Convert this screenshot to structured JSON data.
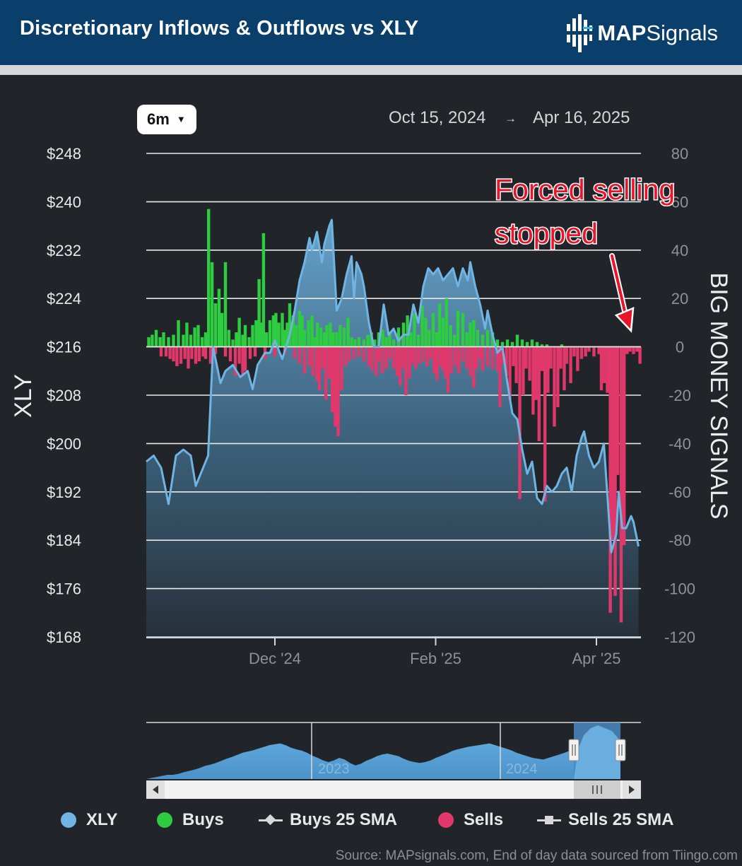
{
  "header": {
    "title": "Discretionary Inflows & Outflows vs XLY",
    "logo_text_bold": "MAP",
    "logo_text": "Signals"
  },
  "controls": {
    "range_label": "6m",
    "start_date": "Oct 15, 2024",
    "arrow": "→",
    "end_date": "Apr 16, 2025"
  },
  "annotation": {
    "line1": "Forced selling",
    "line2": "stopped"
  },
  "navigator": {
    "year_labels": [
      "2023",
      "2024"
    ]
  },
  "legend": {
    "xly": "XLY",
    "buys": "Buys",
    "buys_sma": "Buys 25 SMA",
    "sells": "Sells",
    "sells_sma": "Sells 25 SMA"
  },
  "source": "Source: MAPsignals.com, End of day data sourced from Tiingo.com",
  "colors": {
    "xly": "#6fb4e3",
    "buys": "#2ecc40",
    "sells": "#e0386b",
    "header": "#0b3f6b",
    "annotation": "#e8142a"
  },
  "chart_data": {
    "type": "bar+area",
    "title": "Discretionary Inflows & Outflows vs XLY",
    "left_axis": {
      "label": "XLY",
      "ticks": [
        "$248",
        "$240",
        "$232",
        "$224",
        "$216",
        "$208",
        "$200",
        "$192",
        "$184",
        "$176",
        "$168"
      ],
      "range": [
        168,
        248
      ]
    },
    "right_axis": {
      "label": "BIG MONEY SIGNALS",
      "ticks": [
        "80",
        "60",
        "40",
        "20",
        "0",
        "-20",
        "-40",
        "-60",
        "-80",
        "-100",
        "-120"
      ],
      "range": [
        -120,
        80
      ]
    },
    "x_ticks": [
      "Dec '24",
      "Feb '25",
      "Apr '25"
    ],
    "x_tick_positions": [
      0.26,
      0.585,
      0.91
    ],
    "grid": true,
    "xly": [
      [
        0.0,
        197
      ],
      [
        0.015,
        198
      ],
      [
        0.03,
        196
      ],
      [
        0.045,
        190
      ],
      [
        0.06,
        198
      ],
      [
        0.075,
        199
      ],
      [
        0.09,
        198
      ],
      [
        0.1,
        193
      ],
      [
        0.115,
        196
      ],
      [
        0.125,
        198
      ],
      [
        0.135,
        216
      ],
      [
        0.15,
        210
      ],
      [
        0.16,
        212
      ],
      [
        0.175,
        213
      ],
      [
        0.19,
        211
      ],
      [
        0.205,
        212
      ],
      [
        0.215,
        209
      ],
      [
        0.225,
        213
      ],
      [
        0.24,
        215
      ],
      [
        0.25,
        215
      ],
      [
        0.26,
        217
      ],
      [
        0.275,
        214
      ],
      [
        0.29,
        218
      ],
      [
        0.3,
        222
      ],
      [
        0.31,
        227
      ],
      [
        0.32,
        230
      ],
      [
        0.33,
        234
      ],
      [
        0.335,
        232
      ],
      [
        0.345,
        235
      ],
      [
        0.355,
        230
      ],
      [
        0.36,
        233
      ],
      [
        0.37,
        236
      ],
      [
        0.375,
        237
      ],
      [
        0.385,
        222
      ],
      [
        0.395,
        224
      ],
      [
        0.405,
        228
      ],
      [
        0.415,
        231
      ],
      [
        0.42,
        224
      ],
      [
        0.425,
        230
      ],
      [
        0.435,
        228
      ],
      [
        0.44,
        226
      ],
      [
        0.45,
        220
      ],
      [
        0.46,
        216
      ],
      [
        0.47,
        216
      ],
      [
        0.48,
        223
      ],
      [
        0.49,
        218
      ],
      [
        0.5,
        219
      ],
      [
        0.51,
        217
      ],
      [
        0.52,
        218
      ],
      [
        0.53,
        218
      ],
      [
        0.54,
        223
      ],
      [
        0.55,
        220
      ],
      [
        0.56,
        226
      ],
      [
        0.57,
        229
      ],
      [
        0.58,
        228
      ],
      [
        0.59,
        229
      ],
      [
        0.6,
        227
      ],
      [
        0.61,
        228
      ],
      [
        0.62,
        229
      ],
      [
        0.63,
        226
      ],
      [
        0.64,
        229
      ],
      [
        0.65,
        227
      ],
      [
        0.655,
        230
      ],
      [
        0.665,
        226
      ],
      [
        0.675,
        223
      ],
      [
        0.685,
        219
      ],
      [
        0.69,
        222
      ],
      [
        0.7,
        218
      ],
      [
        0.71,
        215
      ],
      [
        0.72,
        216
      ],
      [
        0.73,
        210
      ],
      [
        0.74,
        205
      ],
      [
        0.75,
        204
      ],
      [
        0.76,
        199
      ],
      [
        0.77,
        195
      ],
      [
        0.78,
        197
      ],
      [
        0.79,
        191
      ],
      [
        0.8,
        190
      ],
      [
        0.81,
        193
      ],
      [
        0.82,
        192
      ],
      [
        0.83,
        193
      ],
      [
        0.84,
        195
      ],
      [
        0.85,
        196
      ],
      [
        0.86,
        192
      ],
      [
        0.87,
        198
      ],
      [
        0.88,
        201
      ],
      [
        0.885,
        202
      ],
      [
        0.895,
        198
      ],
      [
        0.905,
        196
      ],
      [
        0.915,
        197
      ],
      [
        0.925,
        200
      ],
      [
        0.93,
        194
      ],
      [
        0.935,
        188
      ],
      [
        0.94,
        182
      ],
      [
        0.95,
        185
      ],
      [
        0.955,
        192
      ],
      [
        0.962,
        186
      ],
      [
        0.97,
        186
      ],
      [
        0.98,
        188
      ],
      [
        0.985,
        187
      ],
      [
        0.995,
        183
      ]
    ],
    "buys": [
      [
        0.005,
        4
      ],
      [
        0.012,
        5
      ],
      [
        0.02,
        7
      ],
      [
        0.028,
        4
      ],
      [
        0.035,
        6
      ],
      [
        0.045,
        4
      ],
      [
        0.055,
        5
      ],
      [
        0.065,
        11
      ],
      [
        0.075,
        5
      ],
      [
        0.082,
        10
      ],
      [
        0.09,
        5
      ],
      [
        0.098,
        8
      ],
      [
        0.105,
        9
      ],
      [
        0.113,
        4
      ],
      [
        0.12,
        6
      ],
      [
        0.126,
        57
      ],
      [
        0.133,
        35
      ],
      [
        0.14,
        18
      ],
      [
        0.147,
        24
      ],
      [
        0.153,
        14
      ],
      [
        0.16,
        35
      ],
      [
        0.167,
        7
      ],
      [
        0.175,
        3
      ],
      [
        0.182,
        6
      ],
      [
        0.188,
        12
      ],
      [
        0.195,
        5
      ],
      [
        0.2,
        9
      ],
      [
        0.208,
        4
      ],
      [
        0.215,
        9
      ],
      [
        0.222,
        11
      ],
      [
        0.228,
        28
      ],
      [
        0.233,
        10
      ],
      [
        0.237,
        47
      ],
      [
        0.243,
        6
      ],
      [
        0.25,
        11
      ],
      [
        0.257,
        13
      ],
      [
        0.262,
        14
      ],
      [
        0.268,
        10
      ],
      [
        0.275,
        14
      ],
      [
        0.28,
        7
      ],
      [
        0.285,
        10
      ],
      [
        0.29,
        18
      ],
      [
        0.297,
        13
      ],
      [
        0.303,
        9
      ],
      [
        0.31,
        15
      ],
      [
        0.315,
        13
      ],
      [
        0.32,
        7
      ],
      [
        0.328,
        11
      ],
      [
        0.335,
        13
      ],
      [
        0.34,
        4
      ],
      [
        0.346,
        10
      ],
      [
        0.353,
        8
      ],
      [
        0.36,
        6
      ],
      [
        0.365,
        9
      ],
      [
        0.372,
        10
      ],
      [
        0.378,
        6
      ],
      [
        0.385,
        6
      ],
      [
        0.392,
        9
      ],
      [
        0.4,
        8
      ],
      [
        0.408,
        12
      ],
      [
        0.415,
        4
      ],
      [
        0.422,
        3
      ],
      [
        0.43,
        4
      ],
      [
        0.44,
        3
      ],
      [
        0.448,
        5
      ],
      [
        0.455,
        6
      ],
      [
        0.462,
        3
      ],
      [
        0.47,
        6
      ],
      [
        0.478,
        7
      ],
      [
        0.485,
        4
      ],
      [
        0.492,
        6
      ],
      [
        0.5,
        3
      ],
      [
        0.51,
        8
      ],
      [
        0.52,
        10
      ],
      [
        0.528,
        13
      ],
      [
        0.535,
        6
      ],
      [
        0.542,
        14
      ],
      [
        0.55,
        5
      ],
      [
        0.558,
        17
      ],
      [
        0.565,
        12
      ],
      [
        0.572,
        7
      ],
      [
        0.58,
        14
      ],
      [
        0.587,
        6
      ],
      [
        0.593,
        18
      ],
      [
        0.6,
        12
      ],
      [
        0.607,
        20
      ],
      [
        0.615,
        9
      ],
      [
        0.623,
        5
      ],
      [
        0.63,
        15
      ],
      [
        0.64,
        14
      ],
      [
        0.648,
        6
      ],
      [
        0.655,
        10
      ],
      [
        0.662,
        11
      ],
      [
        0.67,
        7
      ],
      [
        0.68,
        5
      ],
      [
        0.69,
        7
      ],
      [
        0.7,
        6
      ],
      [
        0.71,
        3
      ],
      [
        0.72,
        2
      ],
      [
        0.73,
        3
      ],
      [
        0.74,
        2
      ],
      [
        0.75,
        5
      ],
      [
        0.76,
        3
      ],
      [
        0.77,
        2
      ],
      [
        0.78,
        3
      ],
      [
        0.79,
        2
      ],
      [
        0.8,
        1
      ],
      [
        0.81,
        1
      ],
      [
        0.84,
        1
      ]
    ],
    "sells": [
      [
        0.03,
        -4
      ],
      [
        0.04,
        -4
      ],
      [
        0.048,
        -5
      ],
      [
        0.055,
        -6
      ],
      [
        0.062,
        -8
      ],
      [
        0.07,
        -7
      ],
      [
        0.078,
        -5
      ],
      [
        0.085,
        -9
      ],
      [
        0.092,
        -5
      ],
      [
        0.1,
        -7
      ],
      [
        0.107,
        -6
      ],
      [
        0.115,
        -4
      ],
      [
        0.12,
        -5
      ],
      [
        0.13,
        -7
      ],
      [
        0.14,
        -3
      ],
      [
        0.16,
        -4
      ],
      [
        0.17,
        -6
      ],
      [
        0.18,
        -12
      ],
      [
        0.188,
        -7
      ],
      [
        0.195,
        -12
      ],
      [
        0.2,
        -10
      ],
      [
        0.21,
        -5
      ],
      [
        0.22,
        -4
      ],
      [
        0.24,
        -5
      ],
      [
        0.26,
        -4
      ],
      [
        0.28,
        -3
      ],
      [
        0.3,
        -5
      ],
      [
        0.31,
        -7
      ],
      [
        0.32,
        -11
      ],
      [
        0.33,
        -8
      ],
      [
        0.337,
        -12
      ],
      [
        0.345,
        -14
      ],
      [
        0.35,
        -18
      ],
      [
        0.357,
        -9
      ],
      [
        0.363,
        -22
      ],
      [
        0.37,
        -13
      ],
      [
        0.376,
        -27
      ],
      [
        0.382,
        -33
      ],
      [
        0.388,
        -37
      ],
      [
        0.395,
        -18
      ],
      [
        0.403,
        -8
      ],
      [
        0.41,
        -6
      ],
      [
        0.42,
        -5
      ],
      [
        0.43,
        -4
      ],
      [
        0.44,
        -6
      ],
      [
        0.45,
        -8
      ],
      [
        0.457,
        -10
      ],
      [
        0.465,
        -12
      ],
      [
        0.47,
        -6
      ],
      [
        0.477,
        -11
      ],
      [
        0.485,
        -9
      ],
      [
        0.492,
        -5
      ],
      [
        0.5,
        -9
      ],
      [
        0.507,
        -12
      ],
      [
        0.513,
        -16
      ],
      [
        0.52,
        -9
      ],
      [
        0.525,
        -20
      ],
      [
        0.532,
        -13
      ],
      [
        0.538,
        -7
      ],
      [
        0.545,
        -9
      ],
      [
        0.552,
        -7
      ],
      [
        0.56,
        -6
      ],
      [
        0.568,
        -8
      ],
      [
        0.575,
        -5
      ],
      [
        0.582,
        -11
      ],
      [
        0.588,
        -14
      ],
      [
        0.595,
        -8
      ],
      [
        0.6,
        -10
      ],
      [
        0.605,
        -13
      ],
      [
        0.61,
        -19
      ],
      [
        0.617,
        -11
      ],
      [
        0.625,
        -8
      ],
      [
        0.632,
        -11
      ],
      [
        0.64,
        -6
      ],
      [
        0.648,
        -9
      ],
      [
        0.655,
        -12
      ],
      [
        0.662,
        -17
      ],
      [
        0.668,
        -9
      ],
      [
        0.675,
        -5
      ],
      [
        0.68,
        -10
      ],
      [
        0.69,
        -8
      ],
      [
        0.7,
        -9
      ],
      [
        0.71,
        -10
      ],
      [
        0.715,
        -25
      ],
      [
        0.72,
        -7
      ],
      [
        0.728,
        -12
      ],
      [
        0.735,
        -22
      ],
      [
        0.742,
        -8
      ],
      [
        0.748,
        -15
      ],
      [
        0.755,
        -63
      ],
      [
        0.762,
        -20
      ],
      [
        0.768,
        -9
      ],
      [
        0.775,
        -14
      ],
      [
        0.782,
        -28
      ],
      [
        0.788,
        -22
      ],
      [
        0.794,
        -39
      ],
      [
        0.8,
        -10
      ],
      [
        0.806,
        -64
      ],
      [
        0.812,
        -19
      ],
      [
        0.818,
        -9
      ],
      [
        0.825,
        -33
      ],
      [
        0.832,
        -25
      ],
      [
        0.838,
        -9
      ],
      [
        0.845,
        -18
      ],
      [
        0.85,
        -7
      ],
      [
        0.858,
        -15
      ],
      [
        0.865,
        -4
      ],
      [
        0.872,
        -10
      ],
      [
        0.88,
        -5
      ],
      [
        0.888,
        -4
      ],
      [
        0.895,
        -2
      ],
      [
        0.905,
        -4
      ],
      [
        0.915,
        -3
      ],
      [
        0.92,
        -18
      ],
      [
        0.926,
        -15
      ],
      [
        0.932,
        -19
      ],
      [
        0.938,
        -110
      ],
      [
        0.943,
        -80
      ],
      [
        0.948,
        -103
      ],
      [
        0.953,
        -53
      ],
      [
        0.96,
        -114
      ],
      [
        0.966,
        -82
      ],
      [
        0.972,
        -3
      ],
      [
        0.978,
        -2
      ],
      [
        0.985,
        -3
      ],
      [
        0.992,
        -2
      ],
      [
        0.998,
        -7
      ]
    ]
  }
}
